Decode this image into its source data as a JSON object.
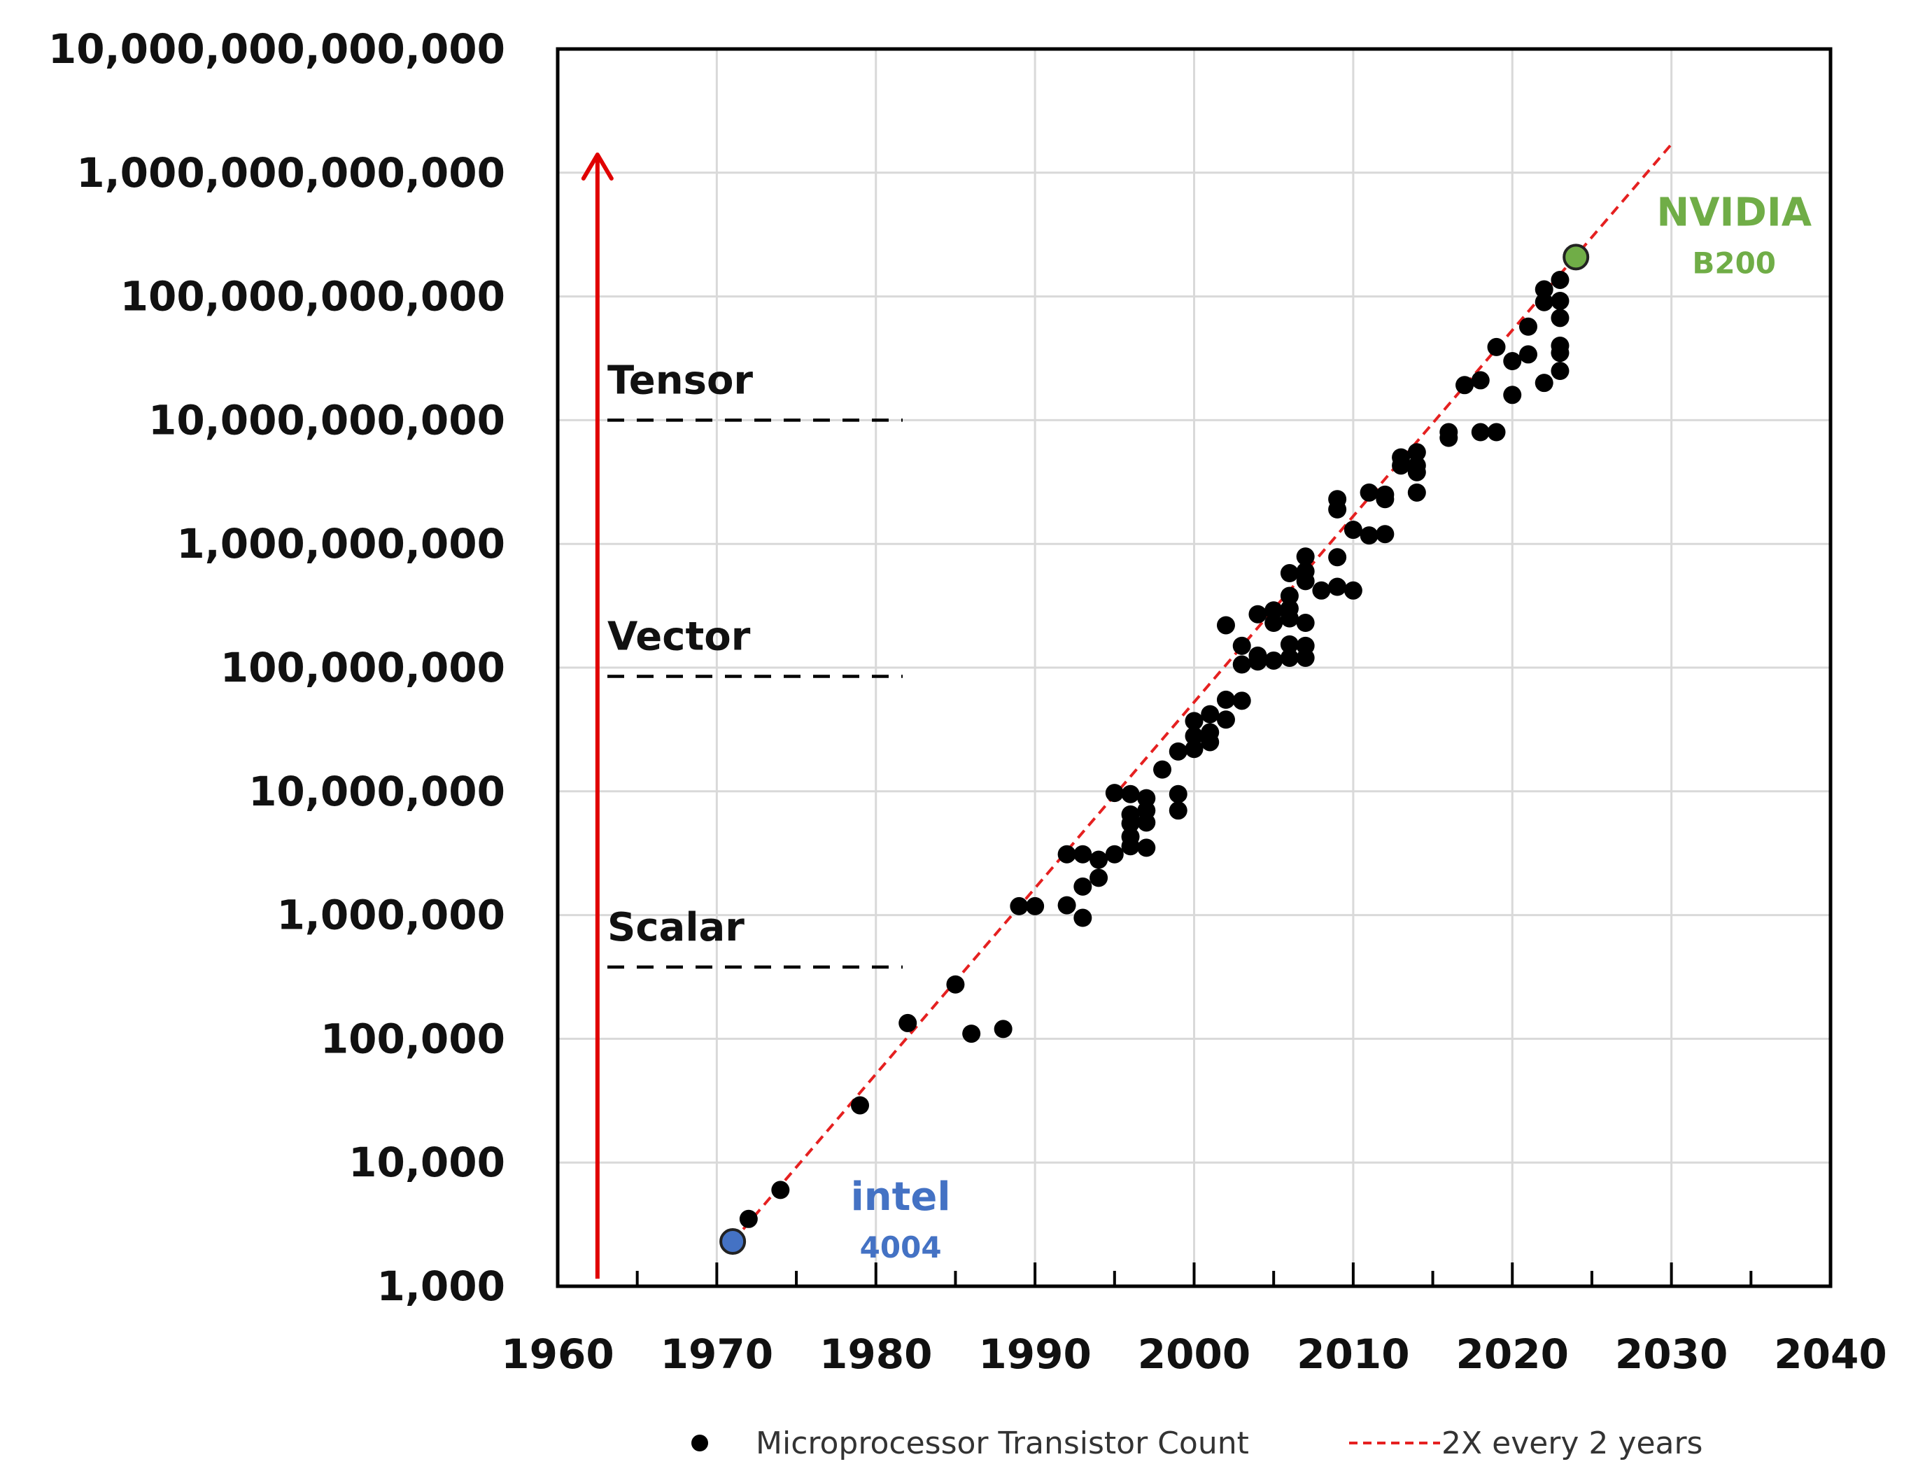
{
  "chart_data": {
    "type": "scatter",
    "xlim": [
      1960,
      2040
    ],
    "ylim": [
      1000,
      10000000000000
    ],
    "yscale": "log",
    "grid": true,
    "x_ticks": [
      "1960",
      "1970",
      "1980",
      "1990",
      "2000",
      "2010",
      "2020",
      "2030",
      "2040"
    ],
    "y_ticks": [
      "1,000",
      "10,000",
      "100,000",
      "1,000,000",
      "10,000,000",
      "100,000,000",
      "1,000,000,000",
      "10,000,000,000",
      "100,000,000,000",
      "1,000,000,000,000",
      "10,000,000,000,000"
    ],
    "legend_position": "bottom",
    "series": [
      {
        "name": "Microprocessor Transistor Count",
        "kind": "scatter",
        "color": "#000000",
        "points": [
          [
            1972,
            3500
          ],
          [
            1974,
            6000
          ],
          [
            1979,
            29000
          ],
          [
            1982,
            134000
          ],
          [
            1985,
            275000
          ],
          [
            1986,
            110000
          ],
          [
            1988,
            120000
          ],
          [
            1989,
            1180000
          ],
          [
            1990,
            1180000
          ],
          [
            1992,
            1200000
          ],
          [
            1992,
            3100000
          ],
          [
            1993,
            3100000
          ],
          [
            1993,
            1700000
          ],
          [
            1993,
            950000
          ],
          [
            1994,
            2000000
          ],
          [
            1994,
            2800000
          ],
          [
            1995,
            3100000
          ],
          [
            1995,
            9700000
          ],
          [
            1996,
            9500000
          ],
          [
            1996,
            6500000
          ],
          [
            1996,
            5500000
          ],
          [
            1996,
            4300000
          ],
          [
            1996,
            3600000
          ],
          [
            1997,
            8800000
          ],
          [
            1997,
            7000000
          ],
          [
            1997,
            5600000
          ],
          [
            1997,
            3500000
          ],
          [
            1998,
            15000000
          ],
          [
            1999,
            9500000
          ],
          [
            1999,
            7000000
          ],
          [
            1999,
            21000000
          ],
          [
            2000,
            22000000
          ],
          [
            2000,
            28000000
          ],
          [
            2000,
            37000000
          ],
          [
            2001,
            25000000
          ],
          [
            2001,
            30000000
          ],
          [
            2001,
            42000000
          ],
          [
            2002,
            38000000
          ],
          [
            2002,
            55000000
          ],
          [
            2002,
            220000000
          ],
          [
            2003,
            54000000
          ],
          [
            2003,
            106000000
          ],
          [
            2003,
            150000000
          ],
          [
            2004,
            112000000
          ],
          [
            2004,
            125000000
          ],
          [
            2004,
            270000000
          ],
          [
            2005,
            114000000
          ],
          [
            2005,
            230000000
          ],
          [
            2005,
            290000000
          ],
          [
            2006,
            120000000
          ],
          [
            2006,
            154000000
          ],
          [
            2006,
            250000000
          ],
          [
            2006,
            300000000
          ],
          [
            2006,
            380000000
          ],
          [
            2006,
            580000000
          ],
          [
            2007,
            120000000
          ],
          [
            2007,
            150000000
          ],
          [
            2007,
            230000000
          ],
          [
            2007,
            500000000
          ],
          [
            2007,
            600000000
          ],
          [
            2007,
            790000000
          ],
          [
            2008,
            420000000
          ],
          [
            2009,
            450000000
          ],
          [
            2009,
            780000000
          ],
          [
            2009,
            1900000000
          ],
          [
            2009,
            2300000000
          ],
          [
            2010,
            420000000
          ],
          [
            2010,
            1300000000
          ],
          [
            2011,
            1170000000
          ],
          [
            2011,
            2600000000
          ],
          [
            2012,
            1200000000
          ],
          [
            2012,
            2300000000
          ],
          [
            2012,
            2500000000
          ],
          [
            2013,
            4300000000
          ],
          [
            2013,
            5000000000
          ],
          [
            2014,
            2600000000
          ],
          [
            2014,
            3800000000
          ],
          [
            2014,
            4300000000
          ],
          [
            2014,
            5500000000
          ],
          [
            2016,
            7200000000
          ],
          [
            2016,
            8000000000
          ],
          [
            2017,
            19200000000
          ],
          [
            2018,
            8000000000
          ],
          [
            2018,
            21000000000
          ],
          [
            2019,
            8000000000
          ],
          [
            2019,
            39000000000
          ],
          [
            2020,
            16000000000
          ],
          [
            2020,
            30000000000
          ],
          [
            2021,
            34000000000
          ],
          [
            2021,
            57000000000
          ],
          [
            2022,
            20000000000
          ],
          [
            2022,
            90000000000
          ],
          [
            2022,
            114000000000
          ],
          [
            2023,
            25000000000
          ],
          [
            2023,
            35000000000
          ],
          [
            2023,
            40000000000
          ],
          [
            2023,
            67000000000
          ],
          [
            2023,
            92000000000
          ],
          [
            2023,
            136000000000
          ]
        ]
      },
      {
        "name": "2X every 2 years",
        "kind": "line",
        "color": "#e52020",
        "start": [
          1971,
          2300
        ],
        "end": [
          2030,
          1700000000000
        ]
      }
    ],
    "highlights": [
      {
        "label": "intel",
        "sublabel": "4004",
        "x": 1971,
        "y": 2300,
        "color": "#4472c4"
      },
      {
        "label": "NVIDIA",
        "sublabel": "B200",
        "x": 2024,
        "y": 208000000000,
        "color": "#70ad47"
      }
    ],
    "eras": [
      {
        "label": "Scalar",
        "y": 380000
      },
      {
        "label": "Vector",
        "y": 85000000
      },
      {
        "label": "Tensor",
        "y": 10000000000
      }
    ],
    "arrow": {
      "color": "#e00000",
      "x": 1962.5,
      "from_y": 1150,
      "to_y": 1400000000000
    }
  }
}
